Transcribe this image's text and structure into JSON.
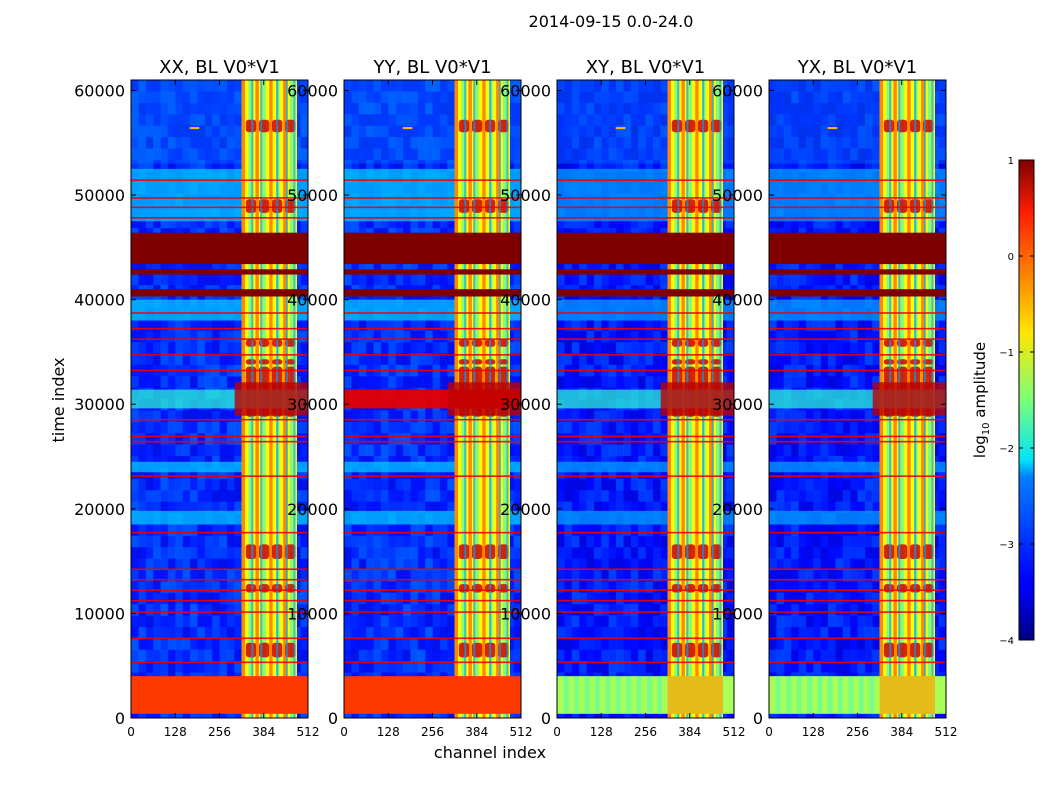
{
  "chart_data": {
    "type": "heatmap",
    "suptitle": "2014-09-15 0.0-24.0",
    "xlabel": "channel index",
    "ylabel": "time index",
    "xlim": [
      0,
      512
    ],
    "ylim": [
      0,
      61000
    ],
    "x_ticks": [
      0,
      128,
      256,
      384,
      512
    ],
    "x_tick_labels": [
      "0",
      "128",
      "256",
      "384",
      "512"
    ],
    "y_ticks": [
      0,
      10000,
      20000,
      30000,
      40000,
      50000,
      60000
    ],
    "y_tick_labels": [
      "0",
      "10000",
      "20000",
      "30000",
      "40000",
      "50000",
      "60000"
    ],
    "colorbar": {
      "label_prefix": "log",
      "label_sub": "10",
      "label_suffix": " amplitude",
      "range": [
        -4,
        1
      ],
      "ticks": [
        1,
        0,
        -1,
        -2,
        -3,
        -4
      ],
      "tick_labels": [
        "1",
        "0",
        "−1",
        "−2",
        "−3",
        "−4"
      ],
      "colormap": "jet"
    },
    "panels": [
      {
        "title": "XX, BL V0*V1",
        "kind": "auto",
        "background_level": -3.2,
        "rfi_band_channels": [
          320,
          480
        ],
        "highlight_row": 30500
      },
      {
        "title": "YY, BL V0*V1",
        "kind": "auto",
        "background_level": -3.2,
        "rfi_band_channels": [
          320,
          480
        ],
        "highlight_row": 30500
      },
      {
        "title": "XY, BL V0*V1",
        "kind": "cross",
        "background_level": -3.3,
        "rfi_band_channels": [
          320,
          480
        ],
        "highlight_row": 30500
      },
      {
        "title": "YX, BL V0*V1",
        "kind": "cross",
        "background_level": -3.3,
        "rfi_band_channels": [
          320,
          480
        ],
        "highlight_row": 30500
      }
    ],
    "saturated_time_ranges": [
      [
        43400,
        46400
      ],
      [
        42400,
        42900
      ],
      [
        40300,
        41000
      ]
    ],
    "low_time_band": [
      400,
      4000
    ]
  }
}
